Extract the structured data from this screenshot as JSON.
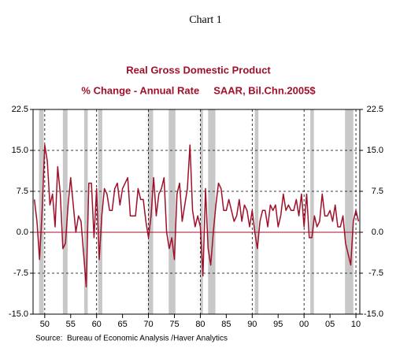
{
  "chart_data": {
    "type": "line",
    "header": "Chart 1",
    "title": "Real Gross Domestic Product",
    "subtitle": "% Change - Annual Rate     SAAR, Bil.Chn.2005$",
    "source": "Source:  Bureau of Economic Analysis /Haver Analytics",
    "x": [
      1948,
      1948.5,
      1949,
      1949.5,
      1950,
      1950.5,
      1951,
      1951.5,
      1952,
      1952.5,
      1953,
      1953.5,
      1954,
      1954.5,
      1955,
      1955.5,
      1956,
      1956.5,
      1957,
      1957.5,
      1958,
      1958.5,
      1959,
      1959.5,
      1960,
      1960.5,
      1961,
      1961.5,
      1962,
      1962.5,
      1963,
      1963.5,
      1964,
      1964.5,
      1965,
      1965.5,
      1966,
      1966.5,
      1967,
      1967.5,
      1968,
      1968.5,
      1969,
      1969.5,
      1970,
      1970.5,
      1971,
      1971.5,
      1972,
      1972.5,
      1973,
      1973.5,
      1974,
      1974.5,
      1975,
      1975.5,
      1976,
      1976.5,
      1977,
      1977.5,
      1978,
      1978.5,
      1979,
      1979.5,
      1980,
      1980.5,
      1981,
      1981.5,
      1982,
      1982.5,
      1983,
      1983.5,
      1984,
      1984.5,
      1985,
      1985.5,
      1986,
      1986.5,
      1987,
      1987.5,
      1988,
      1988.5,
      1989,
      1989.5,
      1990,
      1990.5,
      1991,
      1991.5,
      1992,
      1992.5,
      1993,
      1993.5,
      1994,
      1994.5,
      1995,
      1995.5,
      1996,
      1996.5,
      1997,
      1997.5,
      1998,
      1998.5,
      1999,
      1999.5,
      2000,
      2000.5,
      2001,
      2001.5,
      2002,
      2002.5,
      2003,
      2003.5,
      2004,
      2004.5,
      2005,
      2005.5,
      2006,
      2006.5,
      2007,
      2007.5,
      2008,
      2008.5,
      2009,
      2009.5,
      2010,
      2010.5
    ],
    "series": [
      {
        "name": "Real Gross Domestic Product",
        "color": "#a0102a",
        "values": [
          6,
          2,
          -5,
          4,
          16,
          13,
          5,
          7,
          1,
          12,
          7,
          -3,
          -2,
          5,
          10,
          5,
          0,
          3,
          2,
          -4,
          -10,
          9,
          9,
          -1,
          8,
          -5,
          3,
          8,
          7,
          4,
          4,
          8,
          9,
          5,
          8,
          9,
          10,
          3,
          3,
          3,
          8,
          6,
          6,
          2,
          -1,
          3,
          10,
          3,
          7,
          8,
          10,
          0,
          -3,
          -1,
          -5,
          7,
          9,
          2,
          5,
          8,
          16,
          4,
          1,
          3,
          1,
          -8,
          8,
          -3,
          -6,
          0,
          5,
          9,
          8,
          4,
          4,
          6,
          4,
          2,
          3,
          6,
          2,
          5,
          4,
          1,
          4,
          0,
          -3,
          2,
          4,
          4,
          1,
          5,
          4,
          5,
          1,
          3,
          7,
          4,
          5,
          4,
          4,
          6,
          3,
          7,
          1,
          7,
          -1,
          -1,
          3,
          1,
          2,
          7,
          3,
          3,
          4,
          2,
          5,
          1,
          1,
          3,
          -2,
          -4,
          -6,
          2,
          4,
          2
        ]
      }
    ],
    "shaded_periods": [
      [
        1948.9,
        1949.8
      ],
      [
        1953.5,
        1954.4
      ],
      [
        1957.6,
        1958.3
      ],
      [
        1960.3,
        1961.1
      ],
      [
        1969.9,
        1970.9
      ],
      [
        1973.9,
        1975.2
      ],
      [
        1980.0,
        1980.5
      ],
      [
        1981.5,
        1982.9
      ],
      [
        1990.5,
        1991.2
      ],
      [
        2001.2,
        2001.9
      ],
      [
        2007.9,
        2009.5
      ]
    ],
    "shade_color": "#c8c8c8",
    "xlim": [
      1947.75,
      2010.75
    ],
    "xticks": [
      {
        "value": 1950,
        "label": "50"
      },
      {
        "value": 1955,
        "label": "55"
      },
      {
        "value": 1960,
        "label": "60"
      },
      {
        "value": 1965,
        "label": "65"
      },
      {
        "value": 1970,
        "label": "70"
      },
      {
        "value": 1975,
        "label": "75"
      },
      {
        "value": 1980,
        "label": "80"
      },
      {
        "value": 1985,
        "label": "85"
      },
      {
        "value": 1990,
        "label": "90"
      },
      {
        "value": 1995,
        "label": "95"
      },
      {
        "value": 2000,
        "label": "00"
      },
      {
        "value": 2005,
        "label": "05"
      },
      {
        "value": 2010,
        "label": "10"
      }
    ],
    "xgrid": [
      1950,
      1960,
      1970,
      1980,
      1990,
      2000,
      2010
    ],
    "ylim": [
      -15,
      22.5
    ],
    "yticks": [
      {
        "value": -15,
        "label": "-15.0"
      },
      -7.5,
      {
        "value": 0,
        "label": "0.0"
      },
      7.5,
      {
        "value": 15,
        "label": "15.0"
      },
      22.5
    ],
    "ygrid": [
      -7.5,
      7.5,
      15
    ]
  }
}
